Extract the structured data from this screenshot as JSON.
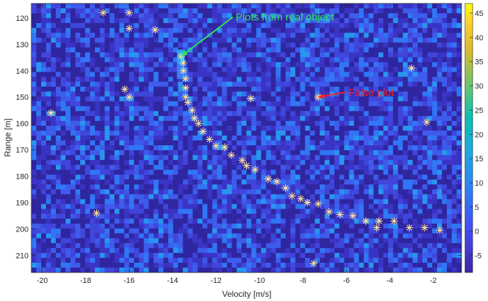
{
  "chart_data": {
    "type": "scatter",
    "background": "heatmap",
    "xlabel": "Velocity [m/s]",
    "ylabel": "Range [m]",
    "xlim": [
      -20.5,
      -0.7
    ],
    "ylim": [
      216.5,
      114.5
    ],
    "y_reversed": true,
    "xticks": [
      -20,
      -18,
      -16,
      -14,
      -12,
      -10,
      -8,
      -6,
      -4,
      -2
    ],
    "yticks": [
      120,
      130,
      140,
      150,
      160,
      170,
      180,
      190,
      200,
      210
    ],
    "colorbar": {
      "min": -8.5,
      "max": 47,
      "ticks": [
        -5,
        0,
        5,
        10,
        15,
        20,
        25,
        30,
        35,
        40,
        45
      ]
    },
    "colors": {
      "marker": "#ffe699",
      "ann_green": "#2ee65a",
      "ann_red": "#ff2020"
    },
    "series": [
      {
        "marker": "asterisk",
        "points": [
          [
            -17.2,
            118
          ],
          [
            -16.0,
            118
          ],
          [
            -16.0,
            124
          ],
          [
            -14.8,
            124.5
          ],
          [
            -19.6,
            156
          ],
          [
            -16.2,
            147
          ],
          [
            -16.0,
            150
          ],
          [
            -17.5,
            194
          ],
          [
            -13.6,
            134.5
          ],
          [
            -13.5,
            137
          ],
          [
            -13.5,
            140
          ],
          [
            -13.4,
            143
          ],
          [
            -13.4,
            146.5
          ],
          [
            -13.4,
            150
          ],
          [
            -13.3,
            152
          ],
          [
            -13.1,
            155
          ],
          [
            -13.0,
            158
          ],
          [
            -12.8,
            160
          ],
          [
            -12.6,
            163
          ],
          [
            -12.3,
            166
          ],
          [
            -12.0,
            168.5
          ],
          [
            -11.6,
            169
          ],
          [
            -11.3,
            172
          ],
          [
            -10.8,
            174
          ],
          [
            -10.6,
            176
          ],
          [
            -10.2,
            177.5
          ],
          [
            -9.6,
            181
          ],
          [
            -9.2,
            182
          ],
          [
            -8.8,
            184.5
          ],
          [
            -8.5,
            187.5
          ],
          [
            -8.1,
            188.5
          ],
          [
            -7.8,
            190
          ],
          [
            -7.3,
            190.5
          ],
          [
            -6.8,
            193.5
          ],
          [
            -6.3,
            194.5
          ],
          [
            -5.7,
            195
          ],
          [
            -5.1,
            197
          ],
          [
            -4.6,
            199.5
          ],
          [
            -4.5,
            197
          ],
          [
            -3.8,
            197
          ],
          [
            -3.1,
            199.5
          ],
          [
            -2.4,
            199.5
          ],
          [
            -1.7,
            200.5
          ],
          [
            -10.4,
            150.5
          ],
          [
            -7.3,
            150
          ],
          [
            -3.0,
            139
          ],
          [
            -2.3,
            159.5
          ],
          [
            -7.5,
            213
          ]
        ]
      }
    ],
    "annotations": [
      {
        "text": "Plots from real object",
        "color": "ann_green",
        "x": -11.1,
        "y": 121,
        "arrow_to": [
          -13.6,
          134.5
        ]
      },
      {
        "text": "False plot",
        "color": "ann_red",
        "x": -5.9,
        "y": 149.5,
        "arrow_to": [
          -7.3,
          150
        ]
      }
    ]
  }
}
